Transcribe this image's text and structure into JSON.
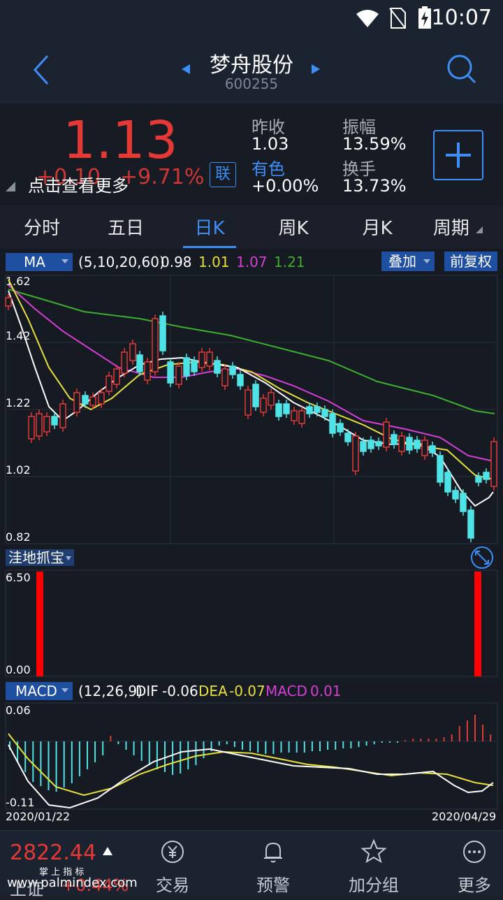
{
  "status": {
    "time": "10:07"
  },
  "header": {
    "name": "梦舟股份",
    "code": "600255"
  },
  "quote": {
    "price": "1.13",
    "change": "+0.10",
    "change_pct": "+9.71%",
    "more_hint": "点击查看更多",
    "link_label": "联",
    "prev_close_label": "昨收",
    "prev_close": "1.03",
    "sector_label": "有色",
    "sector_change": "+0.00%",
    "amplitude_label": "振幅",
    "amplitude": "13.59%",
    "turnover_label": "换手",
    "turnover": "13.73%"
  },
  "tabs": [
    {
      "label": "分时"
    },
    {
      "label": "五日"
    },
    {
      "label": "日K"
    },
    {
      "label": "周K"
    },
    {
      "label": "月K"
    },
    {
      "label": "周期"
    }
  ],
  "ma_bar": {
    "selector": "MA",
    "params": "(5,10,20,60)",
    "v5": "0.98",
    "v10": "1.01",
    "v20": "1.07",
    "v60": "1.21",
    "overlay": "叠加",
    "adjust": "前复权"
  },
  "kline_axis": {
    "t1": "1.62",
    "t2": "1.42",
    "t3": "1.22",
    "t4": "1.02",
    "t5": "0.82"
  },
  "indicator2": {
    "name": "洼地抓宝",
    "top": "6.50",
    "bottom": "0.00"
  },
  "macd_bar": {
    "selector": "MACD",
    "params": "(12,26,9)",
    "dif_label": "DIF",
    "dif": "-0.06",
    "dea_label": "DEA",
    "dea": "-0.07",
    "macd_label": "MACD",
    "macd": "0.01"
  },
  "macd_axis": {
    "top": "0.06",
    "bottom": "-0.11"
  },
  "dates": {
    "start": "2020/01/22",
    "end": "2020/04/29"
  },
  "colors": {
    "up": "#e53935",
    "down": "#4ee3e6",
    "ma5": "#ffffff",
    "ma10": "#e8e03a",
    "ma20": "#d63fd6",
    "ma60": "#3fae2f"
  },
  "bottom_nav": {
    "index_value": "2822.44",
    "index_name": "上证",
    "index_pct": "+0.44%",
    "trade": "交易",
    "alert": "预警",
    "watch": "加分组",
    "more": "更多"
  },
  "watermark": {
    "top": "掌 上 指 标",
    "url": "www.palmindex.com"
  }
}
